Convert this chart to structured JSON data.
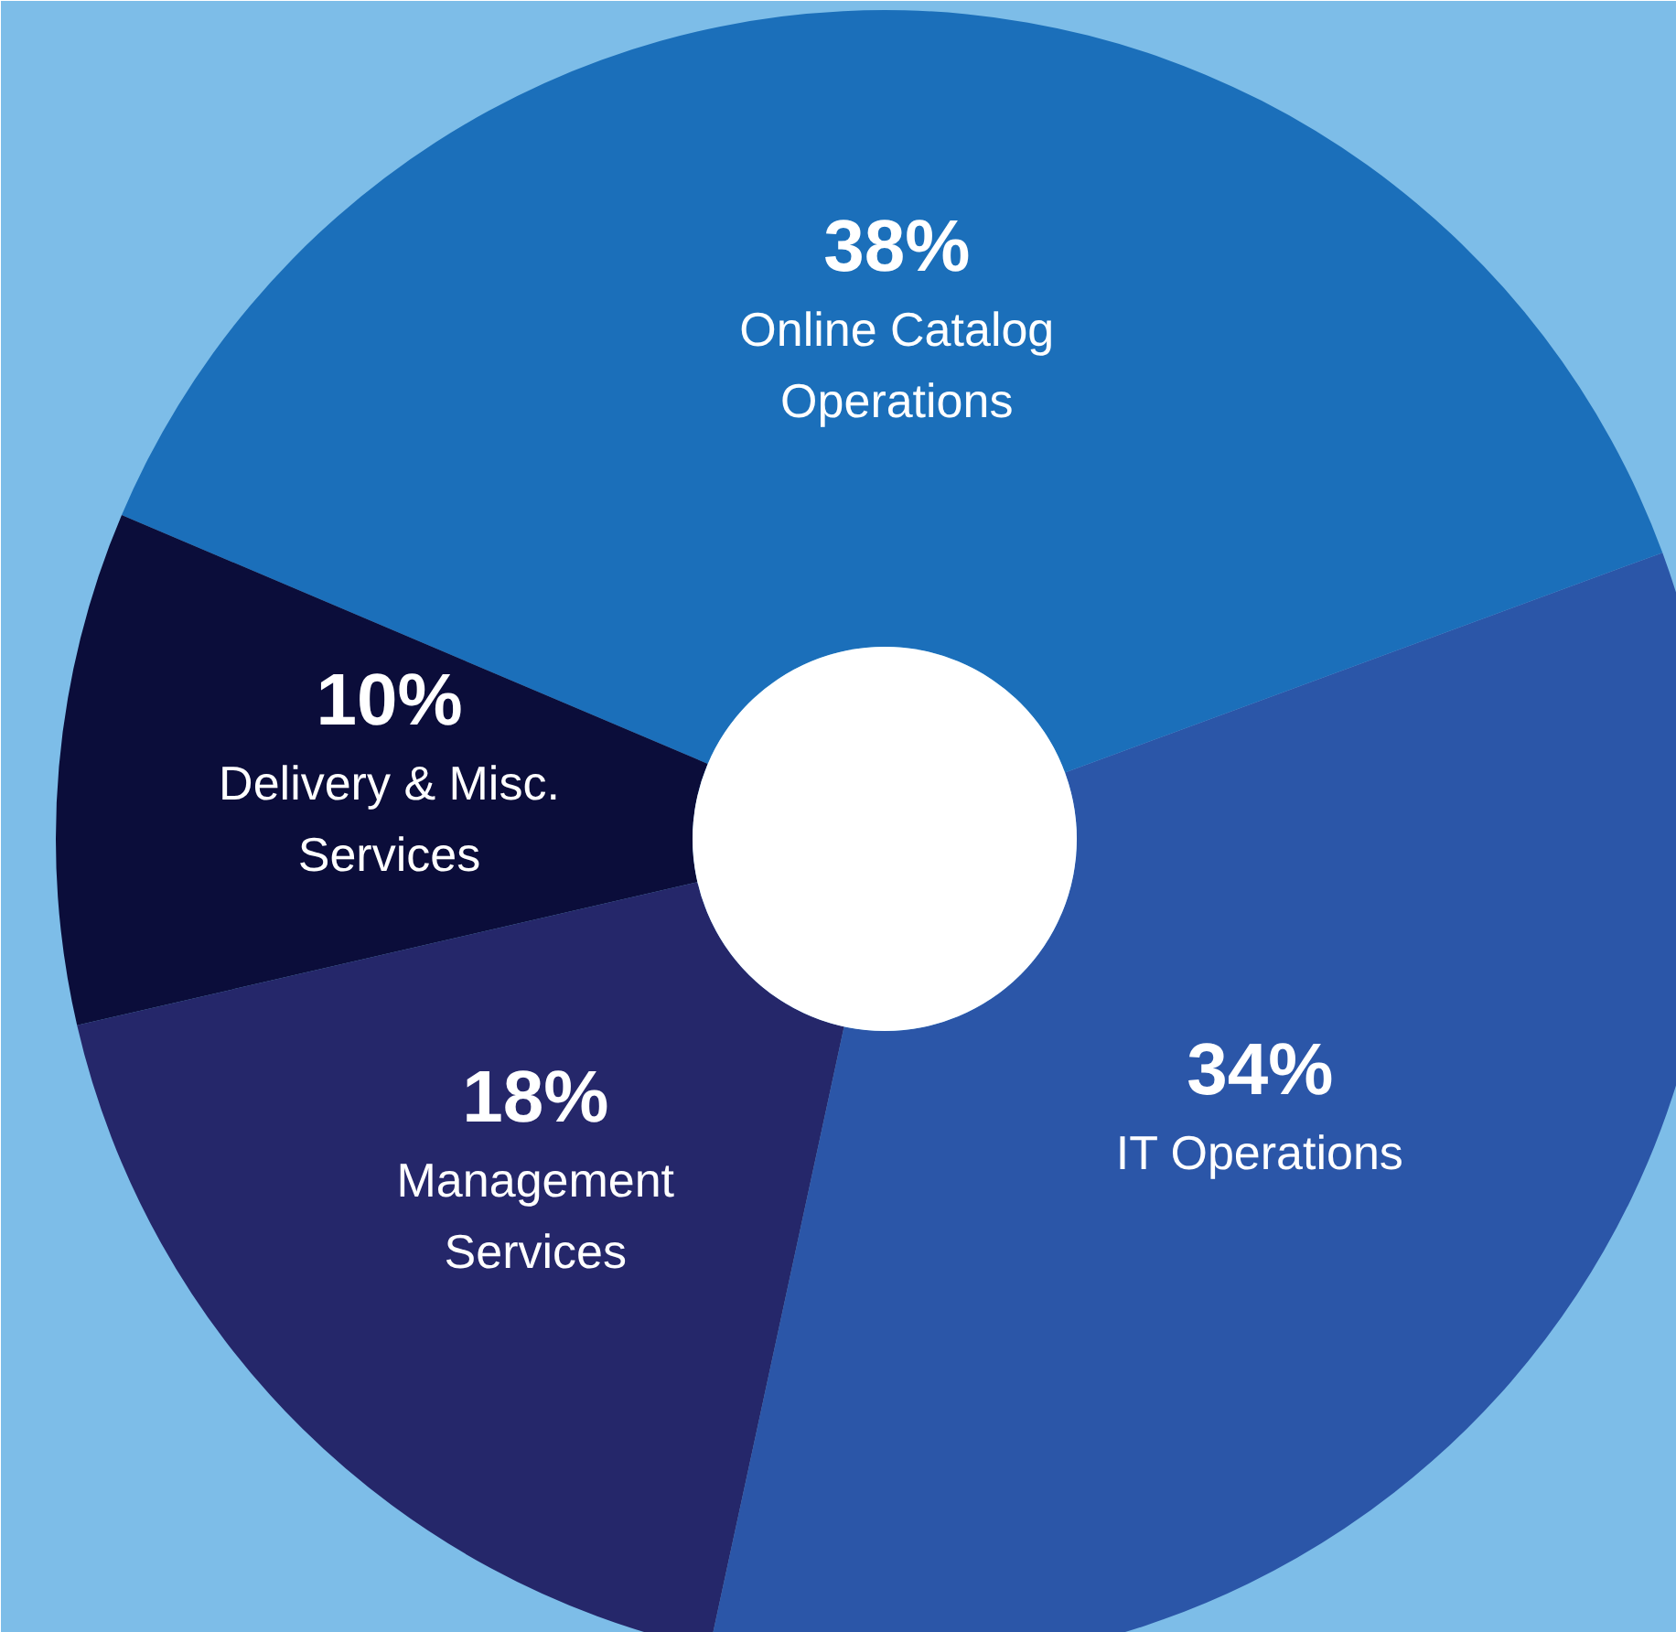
{
  "chart_data": {
    "type": "donut",
    "categories": [
      "Online Catalog\nOperations",
      "IT Operations",
      "Management\nServices",
      "Delivery & Misc.\nServices"
    ],
    "values": [
      38,
      34,
      18,
      10
    ],
    "value_labels": [
      "38%",
      "34%",
      "18%",
      "10%"
    ],
    "colors": [
      "#1b6fba",
      "#2b56a8",
      "#25276a",
      "#0b0d3a"
    ]
  }
}
